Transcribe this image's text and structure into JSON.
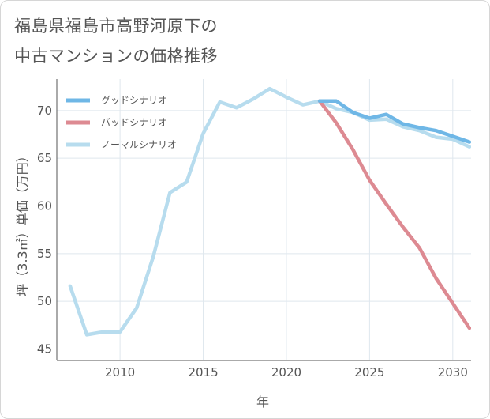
{
  "title_lines": [
    "福島県福島市高野河原下の",
    "中古マンションの価格推移"
  ],
  "colors": {
    "good": "#6fb7e6",
    "bad": "#dd8a92",
    "normal": "#b7dcee",
    "grid": "#dfe7ee",
    "axis": "#555555"
  },
  "chart_data": {
    "type": "line",
    "title": "福島県福島市高野河原下の中古マンションの価格推移",
    "xlabel": "年",
    "ylabel": "坪（3.3㎡）単価（万円）",
    "xlim": [
      2006.2,
      2031.1
    ],
    "ylim": [
      43.8,
      73.3
    ],
    "x_ticks": [
      2010,
      2015,
      2020,
      2025,
      2030
    ],
    "y_ticks": [
      45,
      50,
      55,
      60,
      65,
      70
    ],
    "x_tick_labels": [
      "2010",
      "2015",
      "2020",
      "2025",
      "2030"
    ],
    "y_tick_labels": [
      "45",
      "50",
      "55",
      "60",
      "65",
      "70"
    ],
    "grid": true,
    "legend_position": "top-left",
    "series": [
      {
        "name": "グッドシナリオ",
        "key": "good",
        "x": [
          2022,
          2023,
          2024,
          2025,
          2026,
          2027,
          2028,
          2029,
          2030,
          2031
        ],
        "values": [
          71.0,
          71.0,
          69.8,
          69.2,
          69.6,
          68.6,
          68.2,
          67.9,
          67.3,
          66.7
        ]
      },
      {
        "name": "バッドシナリオ",
        "key": "bad",
        "x": [
          2022,
          2023,
          2024,
          2025,
          2026,
          2027,
          2028,
          2029,
          2030,
          2031
        ],
        "values": [
          71.0,
          68.7,
          65.9,
          62.7,
          60.2,
          57.8,
          55.6,
          52.4,
          49.8,
          47.2
        ]
      },
      {
        "name": "ノーマルシナリオ",
        "key": "normal",
        "x": [
          2007,
          2008,
          2009,
          2010,
          2011,
          2012,
          2013,
          2014,
          2015,
          2016,
          2017,
          2018,
          2019,
          2020,
          2021,
          2022,
          2023,
          2024,
          2025,
          2026,
          2027,
          2028,
          2029,
          2030,
          2031
        ],
        "values": [
          51.6,
          46.5,
          46.8,
          46.8,
          49.3,
          54.7,
          61.4,
          62.5,
          67.6,
          70.9,
          70.3,
          71.2,
          72.3,
          71.4,
          70.6,
          71.0,
          70.2,
          69.8,
          69.0,
          69.1,
          68.3,
          67.9,
          67.2,
          67.0,
          66.2
        ]
      }
    ]
  }
}
